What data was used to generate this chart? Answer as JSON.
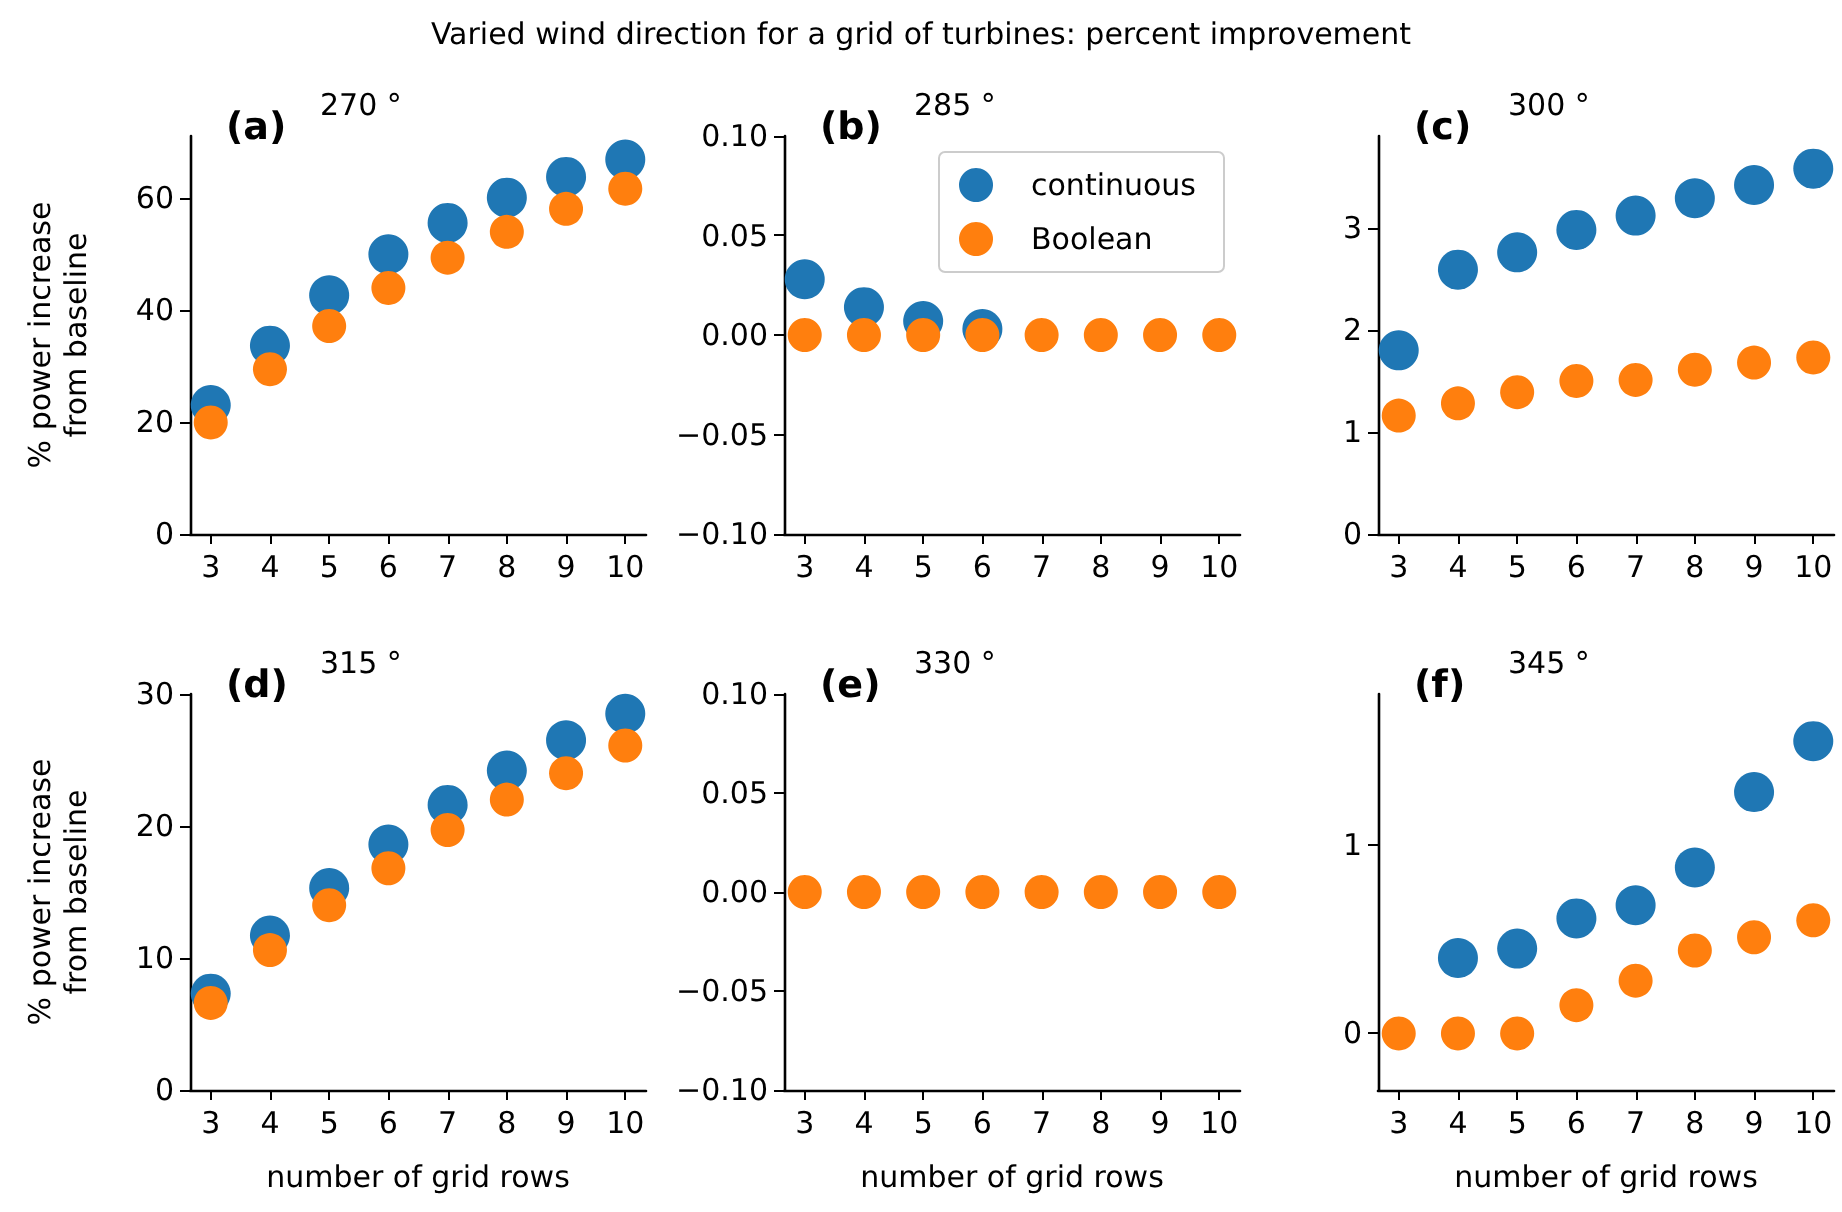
{
  "chart_data": [
    {
      "type": "scatter",
      "title": "270 °",
      "ylabel": "% power increase\nfrom baseline",
      "annotations": [
        "(a)",
        "Varied wind direction for a grid of turbines: percent improvement"
      ],
      "marker": "circle",
      "x": [
        3,
        4,
        5,
        6,
        7,
        8,
        9,
        10
      ],
      "xlim": [
        2.65,
        10.35
      ],
      "xticks": [
        3,
        4,
        5,
        6,
        7,
        8,
        9,
        10
      ],
      "ylim": [
        0,
        71
      ],
      "yticks": [
        0,
        20,
        40,
        60
      ],
      "series": [
        {
          "color": "#1f77b4",
          "values": [
            23.0,
            33.6,
            42.6,
            49.9,
            55.5,
            60.0,
            63.7,
            66.8
          ]
        },
        {
          "color": "#ff7f0e",
          "values": [
            19.9,
            29.4,
            37.1,
            43.9,
            49.3,
            53.9,
            58.0,
            61.6
          ]
        }
      ]
    },
    {
      "type": "scatter",
      "title": "285 °",
      "annotations": [
        "(b)"
      ],
      "marker": "circle",
      "legend": "top right",
      "x": [
        3,
        4,
        5,
        6,
        7,
        8,
        9,
        10
      ],
      "xlim": [
        2.65,
        10.35
      ],
      "xticks": [
        3,
        4,
        5,
        6,
        7,
        8,
        9,
        10
      ],
      "ylim": [
        -0.1,
        0.1
      ],
      "yticks": [
        {
          "value": -0.1,
          "label": "−0.10"
        },
        {
          "value": -0.05,
          "label": "−0.05"
        },
        {
          "value": 0,
          "label": "0.00"
        },
        {
          "value": 0.05,
          "label": "0.05"
        },
        {
          "value": 0.1,
          "label": "0.10"
        }
      ],
      "series": [
        {
          "name": "continuous",
          "color": "#1f77b4",
          "values": [
            0.028,
            0.014,
            0.007,
            0.003,
            null,
            null,
            null,
            null
          ]
        },
        {
          "name": "Boolean",
          "color": "#ff7f0e",
          "values": [
            0,
            0,
            0,
            0,
            0,
            0,
            0,
            0
          ]
        }
      ]
    },
    {
      "type": "scatter",
      "title": "300 °",
      "annotations": [
        "(c)"
      ],
      "marker": "circle",
      "x": [
        3,
        4,
        5,
        6,
        7,
        8,
        9,
        10
      ],
      "xlim": [
        2.65,
        10.35
      ],
      "xticks": [
        3,
        4,
        5,
        6,
        7,
        8,
        9,
        10
      ],
      "ylim": [
        0,
        3.9
      ],
      "yticks": [
        0,
        1,
        2,
        3
      ],
      "series": [
        {
          "color": "#1f77b4",
          "values": [
            1.8,
            2.59,
            2.76,
            2.98,
            3.12,
            3.29,
            3.42,
            3.58
          ]
        },
        {
          "color": "#ff7f0e",
          "values": [
            1.16,
            1.28,
            1.39,
            1.5,
            1.51,
            1.61,
            1.68,
            1.73
          ]
        }
      ]
    },
    {
      "type": "scatter",
      "title": "315 °",
      "xlabel": "number of grid rows",
      "ylabel": "% power increase\nfrom baseline",
      "annotations": [
        "(d)"
      ],
      "marker": "circle",
      "x": [
        3,
        4,
        5,
        6,
        7,
        8,
        9,
        10
      ],
      "xlim": [
        2.65,
        10.35
      ],
      "xticks": [
        3,
        4,
        5,
        6,
        7,
        8,
        9,
        10
      ],
      "ylim": [
        0,
        30
      ],
      "yticks": [
        0,
        10,
        20,
        30
      ],
      "series": [
        {
          "color": "#1f77b4",
          "values": [
            7.3,
            11.7,
            15.3,
            18.6,
            21.6,
            24.2,
            26.5,
            28.5
          ]
        },
        {
          "color": "#ff7f0e",
          "values": [
            6.6,
            10.6,
            14.0,
            16.8,
            19.7,
            22.0,
            24.0,
            26.1
          ]
        }
      ]
    },
    {
      "type": "scatter",
      "title": "330 °",
      "xlabel": "number of grid rows",
      "annotations": [
        "(e)"
      ],
      "marker": "circle",
      "x": [
        3,
        4,
        5,
        6,
        7,
        8,
        9,
        10
      ],
      "xlim": [
        2.65,
        10.35
      ],
      "xticks": [
        3,
        4,
        5,
        6,
        7,
        8,
        9,
        10
      ],
      "ylim": [
        -0.1,
        0.1
      ],
      "yticks": [
        {
          "value": -0.1,
          "label": "−0.10"
        },
        {
          "value": -0.05,
          "label": "−0.05"
        },
        {
          "value": 0,
          "label": "0.00"
        },
        {
          "value": 0.05,
          "label": "0.05"
        },
        {
          "value": 0.1,
          "label": "0.10"
        }
      ],
      "series": [
        {
          "color": "#1f77b4",
          "values": [
            null,
            null,
            null,
            null,
            null,
            null,
            null,
            null
          ]
        },
        {
          "color": "#ff7f0e",
          "values": [
            0,
            0,
            0,
            0,
            0,
            0,
            0,
            0
          ]
        }
      ]
    },
    {
      "type": "scatter",
      "title": "345 °",
      "xlabel": "number of grid rows",
      "annotations": [
        "(f)"
      ],
      "marker": "circle",
      "x": [
        3,
        4,
        5,
        6,
        7,
        8,
        9,
        10
      ],
      "xlim": [
        2.65,
        10.35
      ],
      "xticks": [
        3,
        4,
        5,
        6,
        7,
        8,
        9,
        10
      ],
      "ylim": [
        -0.3,
        1.8
      ],
      "yticks": [
        0,
        1
      ],
      "series": [
        {
          "color": "#1f77b4",
          "values": [
            null,
            0.4,
            0.45,
            0.61,
            0.68,
            0.88,
            1.28,
            1.55
          ]
        },
        {
          "color": "#ff7f0e",
          "values": [
            0,
            0,
            0,
            0.15,
            0.28,
            0.44,
            0.51,
            0.6
          ]
        }
      ]
    }
  ]
}
